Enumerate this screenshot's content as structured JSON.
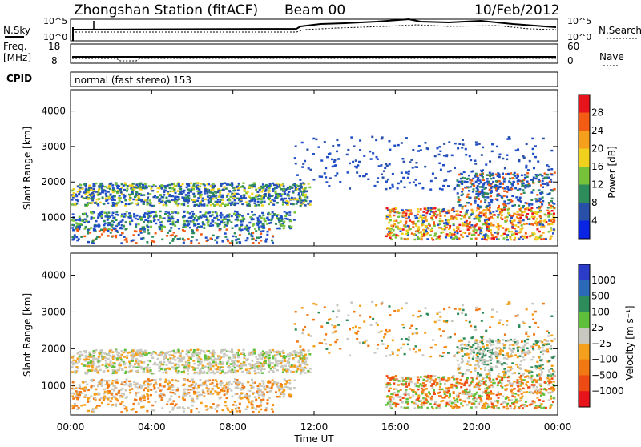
{
  "header": {
    "station": "Zhongshan Station (fitACF)",
    "beam": "Beam 00",
    "date": "10/Feb/2012"
  },
  "side_labels": {
    "nsky": "N.Sky",
    "freq": "Freq.",
    "freq_unit": "[MHz]",
    "cpid": "CPID",
    "nsearch": "N.Search",
    "nave": "Nave"
  },
  "top_axes": {
    "nsky_left_ticks": [
      "10^5",
      "10^0"
    ],
    "nsky_right_ticks": [
      "10^5",
      "10^0"
    ],
    "freq_left_ticks": [
      "18",
      "8"
    ],
    "freq_right_ticks": [
      "60",
      "0"
    ]
  },
  "cpid_text": "normal (fast stereo) 153",
  "colors": {
    "scatter_blue": "#1f4ec6",
    "ground_gray": "#c8c8c0",
    "axis": "#000000"
  },
  "chart_data": [
    {
      "type": "heatmap",
      "title": "",
      "ylabel": "Slant Range [km]",
      "ylim": [
        200,
        4600
      ],
      "yticks": [
        "4000",
        "3000",
        "2000",
        "1000"
      ],
      "xlabel": "",
      "colorbar": {
        "label": "Power [dB]",
        "ticks": [
          "28",
          "24",
          "20",
          "16",
          "12",
          "8",
          "4"
        ],
        "colors": [
          "#e8141c",
          "#f25c14",
          "#f5a01c",
          "#f0d21e",
          "#78c23a",
          "#2e8c5a",
          "#2850a8",
          "#0a24e6"
        ]
      }
    },
    {
      "type": "heatmap",
      "title": "",
      "ylabel": "Slant Range [km]",
      "ylim": [
        200,
        4600
      ],
      "yticks": [
        "4000",
        "3000",
        "2000",
        "1000"
      ],
      "xlabel": "Time UT",
      "xticks": [
        "00:00",
        "04:00",
        "08:00",
        "12:00",
        "16:00",
        "20:00",
        "00:00"
      ],
      "colorbar": {
        "label": "Velocity [m s⁻¹]",
        "ticks": [
          "1000",
          "500",
          "100",
          "25",
          "−25",
          "−100",
          "−500",
          "−1000"
        ],
        "colors": [
          "#2b3cc8",
          "#2b6ab8",
          "#2e8c5a",
          "#5ec03a",
          "#c8c8c0",
          "#f5a01c",
          "#f27814",
          "#ee4a14",
          "#e8141c"
        ]
      }
    }
  ]
}
